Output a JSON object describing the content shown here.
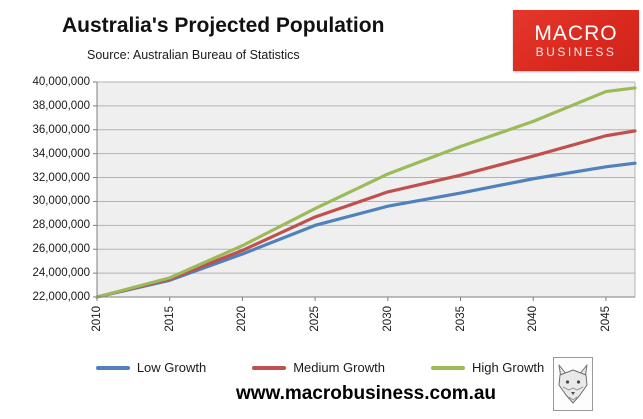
{
  "header": {
    "title": "Australia's Projected Population",
    "subtitle": "Source: Australian Bureau of Statistics",
    "logo": {
      "line1": "MACRO",
      "line2": "BUSINESS",
      "bg_color": "#d9291f",
      "text_color": "#ffffff"
    }
  },
  "footer": {
    "url": "www.macrobusiness.com.au",
    "fox_logo": "fox-head-sketch"
  },
  "chart_data": {
    "type": "line",
    "title": "Australia's Projected Population",
    "source": "Australian Bureau of Statistics",
    "x": [
      2010,
      2015,
      2020,
      2025,
      2030,
      2035,
      2040,
      2045,
      2047
    ],
    "series": [
      {
        "name": "Low Growth",
        "color": "#4f81bd",
        "values": [
          22000000,
          23400000,
          25600000,
          28000000,
          29600000,
          30700000,
          31900000,
          32900000,
          33200000
        ]
      },
      {
        "name": "Medium Growth",
        "color": "#c0504d",
        "values": [
          22000000,
          23500000,
          25900000,
          28700000,
          30800000,
          32200000,
          33800000,
          35500000,
          35900000
        ]
      },
      {
        "name": "High Growth",
        "color": "#9bbb59",
        "values": [
          22000000,
          23600000,
          26300000,
          29400000,
          32300000,
          34600000,
          36700000,
          39200000,
          39500000
        ]
      }
    ],
    "xlim": [
      2010,
      2047
    ],
    "ylim": [
      22000000,
      40000000
    ],
    "xticks": [
      2010,
      2015,
      2020,
      2025,
      2030,
      2035,
      2040,
      2045
    ],
    "xtick_labels": [
      "2010",
      "2015",
      "2020",
      "2025",
      "2030",
      "2035",
      "2040",
      "2045"
    ],
    "yticks": [
      22000000,
      24000000,
      26000000,
      28000000,
      30000000,
      32000000,
      34000000,
      36000000,
      38000000,
      40000000
    ],
    "ytick_labels": [
      "22,000,000",
      "24,000,000",
      "26,000,000",
      "28,000,000",
      "30,000,000",
      "32,000,000",
      "34,000,000",
      "36,000,000",
      "38,000,000",
      "40,000,000"
    ],
    "grid": true,
    "plot_bg": "#efefef",
    "gridline_color": "#b3b3b3",
    "axis_color": "#7f7f7f",
    "legend_position": "bottom",
    "line_width": 3.2
  }
}
